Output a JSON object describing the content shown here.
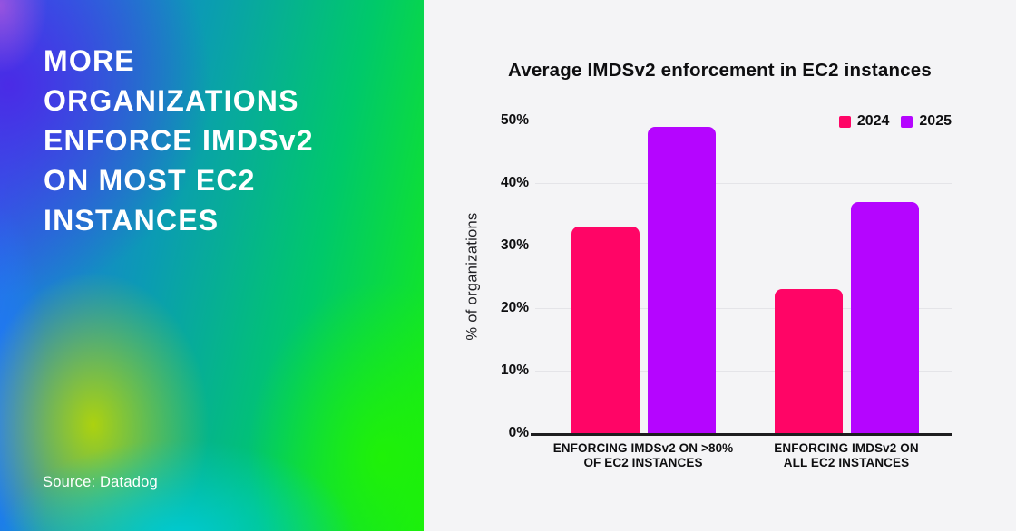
{
  "left_panel": {
    "heading_lines": [
      "MORE",
      "ORGANIZATIONS",
      "ENFORCE IMDSv2",
      "ON MOST EC2",
      "INSTANCES"
    ],
    "source": "Source: Datadog",
    "gradient_colors": [
      "#4a2be6",
      "#2f63f2",
      "#0b9bb4",
      "#00dc78",
      "#bad700",
      "#17ef12",
      "#00cbd4"
    ]
  },
  "chart": {
    "colors": {
      "background": "#f4f4f6",
      "grid": "#e4e4e8",
      "axis": "#1d1d1f",
      "text": "#0e0e10"
    }
  },
  "chart_data": {
    "type": "bar",
    "title": "Average IMDSv2 enforcement in EC2 instances",
    "ylabel": "% of organizations",
    "xlabel": "",
    "categories": [
      [
        "ENFORCING IMDSv2 ON >80%",
        "OF EC2 INSTANCES"
      ],
      [
        "ENFORCING IMDSv2 ON",
        "ALL EC2 INSTANCES"
      ]
    ],
    "series": [
      {
        "name": "2024",
        "color": "#ff0566",
        "values": [
          33,
          23
        ]
      },
      {
        "name": "2025",
        "color": "#b505ff",
        "values": [
          49,
          37
        ]
      }
    ],
    "ylim": [
      0,
      50
    ],
    "ytick_values": [
      0,
      10,
      20,
      30,
      40,
      50
    ],
    "ytick_labels": [
      "0%",
      "10%",
      "20%",
      "30%",
      "40%",
      "50%"
    ],
    "grid": true,
    "legend_position": "top-right"
  }
}
